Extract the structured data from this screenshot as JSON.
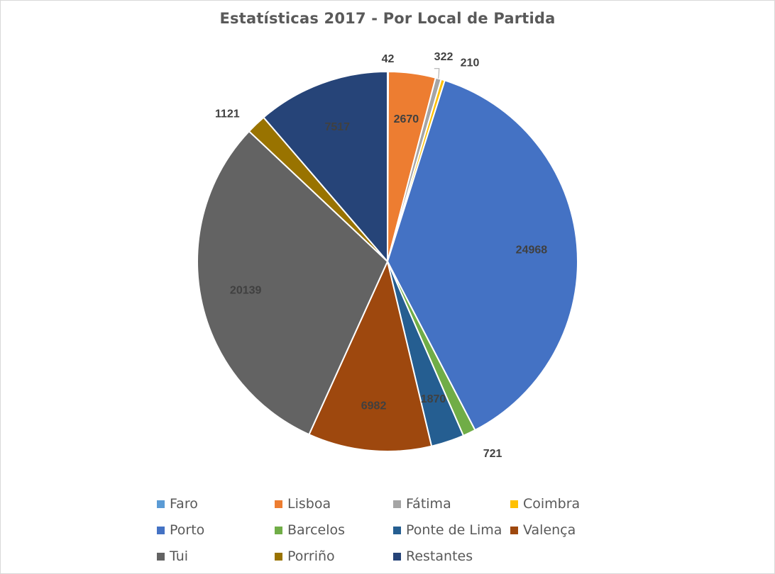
{
  "chart_data": {
    "type": "pie",
    "title": "Estatísticas 2017 - Por Local de Partida",
    "legend_position": "bottom",
    "slices": [
      {
        "label": "Faro",
        "value": 42,
        "color": "#5B9BD5"
      },
      {
        "label": "Lisboa",
        "value": 2670,
        "color": "#ED7D31"
      },
      {
        "label": "Fátima",
        "value": 322,
        "color": "#A5A5A5"
      },
      {
        "label": "Coimbra",
        "value": 210,
        "color": "#FFC000"
      },
      {
        "label": "Porto",
        "value": 24968,
        "color": "#4472C4"
      },
      {
        "label": "Barcelos",
        "value": 721,
        "color": "#70AD47"
      },
      {
        "label": "Ponte de Lima",
        "value": 1870,
        "color": "#255E91"
      },
      {
        "label": "Valença",
        "value": 6982,
        "color": "#9E480E"
      },
      {
        "label": "Tui",
        "value": 20139,
        "color": "#636363"
      },
      {
        "label": "Porriño",
        "value": 1121,
        "color": "#997300"
      },
      {
        "label": "Restantes",
        "value": 7517,
        "color": "#264478"
      }
    ]
  }
}
